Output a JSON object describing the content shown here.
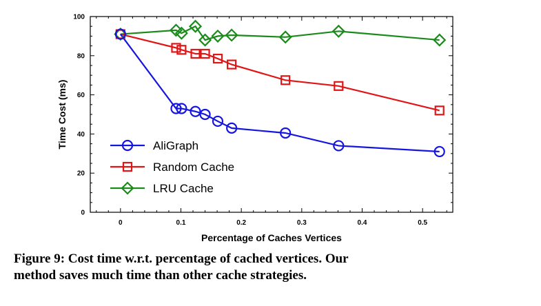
{
  "chart_data": {
    "type": "line",
    "xlabel": "Percentage of Caches Vertices",
    "ylabel": "Time Cost (ms)",
    "xlim": [
      -0.05,
      0.55
    ],
    "ylim": [
      0,
      100
    ],
    "x_ticks": [
      0,
      0.1,
      0.2,
      0.3,
      0.4,
      0.5
    ],
    "x_tick_labels": [
      "0",
      "0.1",
      "0.2",
      "0.3",
      "0.4",
      "0.5"
    ],
    "y_ticks": [
      0,
      20,
      40,
      60,
      80,
      100
    ],
    "y_tick_labels": [
      "0",
      "20",
      "40",
      "60",
      "80",
      "100"
    ],
    "legend_position": "bottom-left",
    "series": [
      {
        "name": "AliGraph",
        "color": "#1515e0",
        "marker": "circle",
        "x": [
          0,
          0.092,
          0.101,
          0.124,
          0.14,
          0.161,
          0.184,
          0.273,
          0.361,
          0.528
        ],
        "y": [
          91,
          53,
          53,
          51.5,
          50,
          46.5,
          43,
          40.5,
          34,
          31
        ]
      },
      {
        "name": "Random Cache",
        "color": "#e01515",
        "marker": "square",
        "x": [
          0,
          0.092,
          0.101,
          0.124,
          0.14,
          0.161,
          0.184,
          0.273,
          0.361,
          0.528
        ],
        "y": [
          91,
          84,
          83,
          81,
          81,
          78.5,
          75.5,
          67.5,
          64.5,
          52
        ]
      },
      {
        "name": "LRU Cache",
        "color": "#1a8a1a",
        "marker": "diamond",
        "x": [
          0,
          0.092,
          0.101,
          0.124,
          0.14,
          0.161,
          0.184,
          0.273,
          0.361,
          0.528
        ],
        "y": [
          91,
          93,
          91.5,
          95,
          88,
          90,
          90.5,
          89.5,
          92.5,
          88
        ]
      }
    ]
  },
  "caption": {
    "line1": "Figure 9:  Cost time w.r.t. percentage of cached vertices.  Our",
    "line2": "method saves much time than other cache strategies."
  }
}
